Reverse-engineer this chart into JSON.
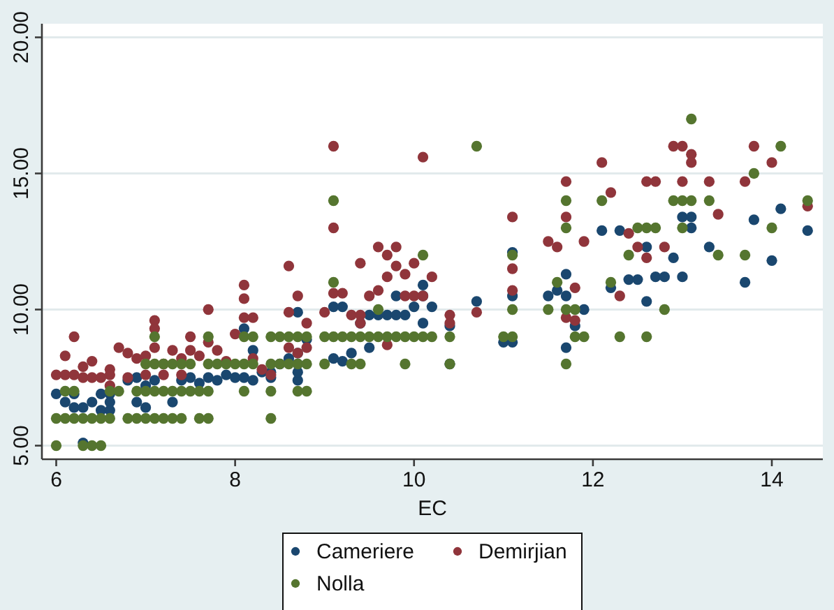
{
  "chart_data": {
    "type": "scatter",
    "xlabel": "EC",
    "xlim": [
      5.84,
      14.57
    ],
    "ylim": [
      4.5,
      20.5
    ],
    "xticks": [
      6,
      8,
      10,
      12,
      14
    ],
    "yticks": [
      {
        "value": 5,
        "label": "5.00"
      },
      {
        "value": 10,
        "label": "10.00"
      },
      {
        "value": 15,
        "label": "15.00"
      },
      {
        "value": 20,
        "label": "20.00"
      }
    ],
    "grid": "y",
    "legend": "bottom",
    "marker": "circle",
    "series": [
      {
        "name": "Cameriere",
        "color": "#1a476f",
        "x": [
          6.0,
          6.1,
          6.2,
          6.2,
          6.3,
          6.3,
          6.4,
          6.5,
          6.5,
          6.6,
          6.6,
          6.6,
          6.8,
          6.9,
          6.9,
          7.0,
          7.0,
          7.1,
          7.3,
          7.4,
          7.5,
          7.6,
          7.7,
          7.8,
          7.9,
          8.0,
          8.1,
          8.1,
          8.2,
          8.2,
          8.3,
          8.4,
          8.4,
          8.5,
          8.6,
          8.7,
          8.7,
          8.7,
          8.7,
          8.7,
          8.8,
          9.1,
          9.1,
          9.2,
          9.2,
          9.3,
          9.4,
          9.5,
          9.5,
          9.6,
          9.7,
          9.8,
          9.9,
          9.8,
          10.0,
          10.1,
          10.1,
          10.2,
          10.1,
          10.4,
          10.4,
          10.7,
          11.0,
          11.1,
          11.1,
          11.1,
          11.5,
          11.6,
          11.7,
          11.7,
          11.9,
          11.8,
          11.7,
          12.1,
          12.2,
          12.3,
          12.4,
          12.5,
          12.6,
          12.6,
          12.7,
          12.8,
          12.9,
          13.0,
          13.0,
          13.1,
          13.1,
          13.3,
          13.7,
          13.8,
          14.0,
          14.1,
          14.4
        ],
        "values": [
          6.9,
          6.6,
          6.4,
          6.9,
          6.4,
          5.1,
          6.6,
          6.3,
          6.9,
          6.6,
          6.3,
          6.9,
          7.4,
          7.5,
          6.6,
          6.4,
          7.2,
          7.4,
          6.6,
          7.4,
          7.5,
          7.3,
          7.5,
          7.4,
          7.6,
          7.5,
          7.5,
          9.3,
          8.5,
          7.4,
          7.7,
          7.5,
          7.7,
          8.0,
          8.2,
          7.4,
          7.7,
          8.0,
          8.4,
          9.9,
          8.9,
          8.2,
          10.1,
          10.1,
          8.1,
          8.4,
          9.5,
          8.6,
          9.8,
          9.8,
          9.8,
          9.8,
          9.8,
          10.5,
          10.1,
          10.5,
          10.9,
          10.1,
          9.5,
          9.4,
          8.0,
          10.3,
          8.8,
          8.8,
          10.5,
          12.1,
          10.5,
          10.7,
          10.5,
          11.3,
          10.0,
          9.4,
          8.6,
          12.9,
          10.8,
          12.9,
          11.1,
          11.1,
          10.3,
          12.3,
          11.2,
          11.2,
          11.9,
          11.2,
          13.4,
          13.4,
          13.0,
          12.3,
          11.0,
          13.3,
          11.8,
          13.7,
          12.9
        ]
      },
      {
        "name": "Demirjian",
        "color": "#90353b",
        "x": [
          6.0,
          6.1,
          6.1,
          6.2,
          6.2,
          6.3,
          6.3,
          6.4,
          6.4,
          6.5,
          6.6,
          6.6,
          6.6,
          6.7,
          6.8,
          6.8,
          6.9,
          7.0,
          7.0,
          7.1,
          7.1,
          7.1,
          7.2,
          7.2,
          7.3,
          7.4,
          7.4,
          7.5,
          7.5,
          7.6,
          7.7,
          7.7,
          7.8,
          7.9,
          8.0,
          8.1,
          8.1,
          8.1,
          8.2,
          8.2,
          8.3,
          8.4,
          8.6,
          8.6,
          8.6,
          8.7,
          8.7,
          8.8,
          8.8,
          9.0,
          9.1,
          9.1,
          9.1,
          9.2,
          9.3,
          9.4,
          9.4,
          9.4,
          9.5,
          9.6,
          9.6,
          9.7,
          9.7,
          9.7,
          9.8,
          9.8,
          9.9,
          9.9,
          10.0,
          10.0,
          10.1,
          10.1,
          10.2,
          10.4,
          10.4,
          10.7,
          11.1,
          11.1,
          11.1,
          11.5,
          11.6,
          11.7,
          11.7,
          11.8,
          11.7,
          11.8,
          11.9,
          12.1,
          12.2,
          12.3,
          12.4,
          12.5,
          12.6,
          12.6,
          12.7,
          12.8,
          12.9,
          13.0,
          13.0,
          13.1,
          13.1,
          13.3,
          13.4,
          13.7,
          13.8,
          14.0,
          14.4
        ],
        "values": [
          7.6,
          7.6,
          8.3,
          7.6,
          9.0,
          7.9,
          7.5,
          7.5,
          8.1,
          7.5,
          7.8,
          7.6,
          7.2,
          8.6,
          8.4,
          7.5,
          8.2,
          7.6,
          8.3,
          9.6,
          9.3,
          8.6,
          8.0,
          7.6,
          8.5,
          7.6,
          8.2,
          9.0,
          8.5,
          8.3,
          10.0,
          8.8,
          8.5,
          8.1,
          9.1,
          10.9,
          10.4,
          9.7,
          9.7,
          8.2,
          7.8,
          7.6,
          11.6,
          9.9,
          8.6,
          10.5,
          8.4,
          9.5,
          8.6,
          9.9,
          16.0,
          13.0,
          10.6,
          10.6,
          9.8,
          9.8,
          9.5,
          11.7,
          10.5,
          12.3,
          10.7,
          12.0,
          11.2,
          8.7,
          12.3,
          11.6,
          11.3,
          10.5,
          11.7,
          10.5,
          10.5,
          15.6,
          11.2,
          9.8,
          9.5,
          9.9,
          13.4,
          11.5,
          10.7,
          12.5,
          12.3,
          14.7,
          13.4,
          10.8,
          9.7,
          9.6,
          12.5,
          15.4,
          14.3,
          10.5,
          12.8,
          12.3,
          11.9,
          14.7,
          14.7,
          12.3,
          16.0,
          16.0,
          14.7,
          15.7,
          15.4,
          14.7,
          13.5,
          14.7,
          16.0,
          15.4,
          13.8
        ]
      },
      {
        "name": "Nolla",
        "color": "#55752f",
        "x": [
          6.0,
          6.3,
          6.4,
          6.5,
          6.0,
          6.1,
          6.2,
          6.3,
          6.4,
          6.5,
          6.6,
          6.8,
          6.9,
          7.0,
          7.1,
          7.2,
          7.3,
          7.4,
          7.6,
          7.7,
          8.4,
          6.1,
          6.2,
          6.6,
          6.7,
          6.9,
          7.0,
          7.1,
          7.2,
          7.3,
          7.4,
          7.5,
          7.6,
          7.7,
          8.1,
          8.4,
          8.7,
          8.8,
          7.0,
          7.1,
          7.2,
          7.3,
          7.4,
          7.5,
          7.7,
          7.8,
          7.9,
          8.0,
          8.1,
          8.2,
          8.4,
          8.5,
          8.6,
          8.7,
          8.8,
          9.0,
          9.3,
          9.4,
          9.9,
          10.4,
          11.7,
          7.1,
          7.7,
          8.1,
          8.2,
          8.4,
          8.5,
          8.6,
          8.7,
          8.8,
          9.0,
          9.1,
          9.2,
          9.3,
          9.4,
          9.5,
          9.6,
          9.7,
          9.8,
          9.9,
          10.0,
          10.1,
          10.2,
          10.4,
          11.0,
          11.1,
          11.8,
          11.9,
          12.3,
          12.6,
          9.1,
          9.1,
          9.6,
          10.1,
          10.7,
          11.1,
          11.1,
          11.5,
          11.6,
          11.7,
          11.8,
          11.7,
          11.7,
          12.1,
          12.2,
          12.4,
          12.5,
          12.6,
          12.7,
          12.8,
          12.9,
          13.0,
          13.1,
          13.3,
          13.0,
          13.1,
          13.4,
          13.7,
          13.8,
          14.0,
          14.1,
          14.4
        ],
        "values": [
          5,
          5,
          5,
          5,
          6,
          6,
          6,
          6,
          6,
          6,
          6,
          6,
          6,
          6,
          6,
          6,
          6,
          6,
          6,
          6,
          6,
          7,
          7,
          7,
          7,
          7,
          7,
          7,
          7,
          7,
          7,
          7,
          7,
          7,
          7,
          7,
          7,
          7,
          8,
          8,
          8,
          8,
          8,
          8,
          8,
          8,
          8,
          8,
          8,
          8,
          8,
          8,
          8,
          8,
          8,
          8,
          8,
          8,
          8,
          8,
          8,
          9,
          9,
          9,
          9,
          9,
          9,
          9,
          9,
          9,
          9,
          9,
          9,
          9,
          9,
          9,
          9,
          9,
          9,
          9,
          9,
          9,
          9,
          9,
          9,
          9,
          9,
          9,
          9,
          9,
          11,
          14,
          10,
          12,
          16,
          10,
          12,
          10,
          11,
          10,
          10,
          13,
          14,
          14,
          11,
          12,
          13,
          13,
          13,
          10,
          14,
          14,
          14,
          14,
          13,
          17,
          12,
          12,
          15,
          13,
          16,
          14
        ]
      }
    ]
  }
}
